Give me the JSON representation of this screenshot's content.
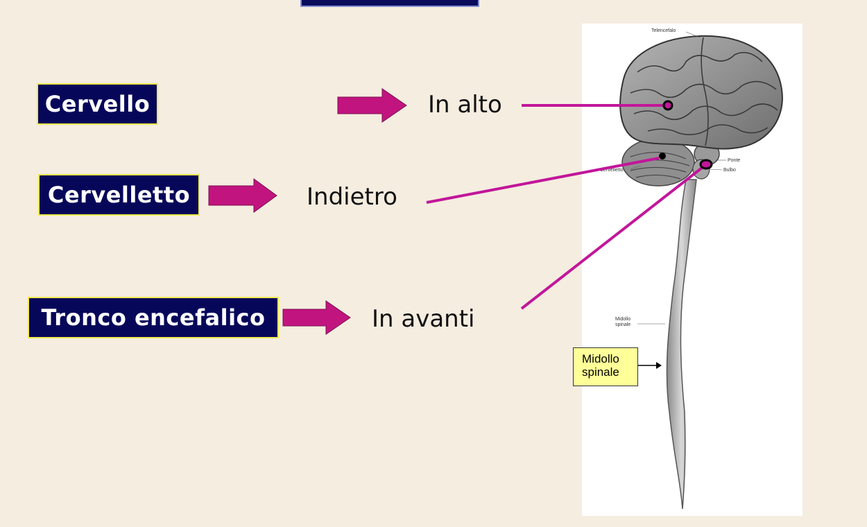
{
  "labels": {
    "cervello": "Cervello",
    "cervelletto": "Cervelletto",
    "tronco": "Tronco encefalico"
  },
  "directions": {
    "alto": "In alto",
    "indietro": "Indietro",
    "avanti": "In avanti"
  },
  "figure_labels": {
    "telencefalo": "Telencefalo",
    "ponte": "Ponte",
    "bulbo": "Bulbo",
    "cervelletto": "Cervelletto",
    "midollo": "Midollo",
    "spinale": "spinale"
  },
  "callout": {
    "line1": "Midollo",
    "line2": "spinale"
  },
  "colors": {
    "background": "#f5ede0",
    "label_bg": "#07075a",
    "label_border": "#f1ea4e",
    "arrow": "#c2147f",
    "leader": "#c2169a"
  }
}
